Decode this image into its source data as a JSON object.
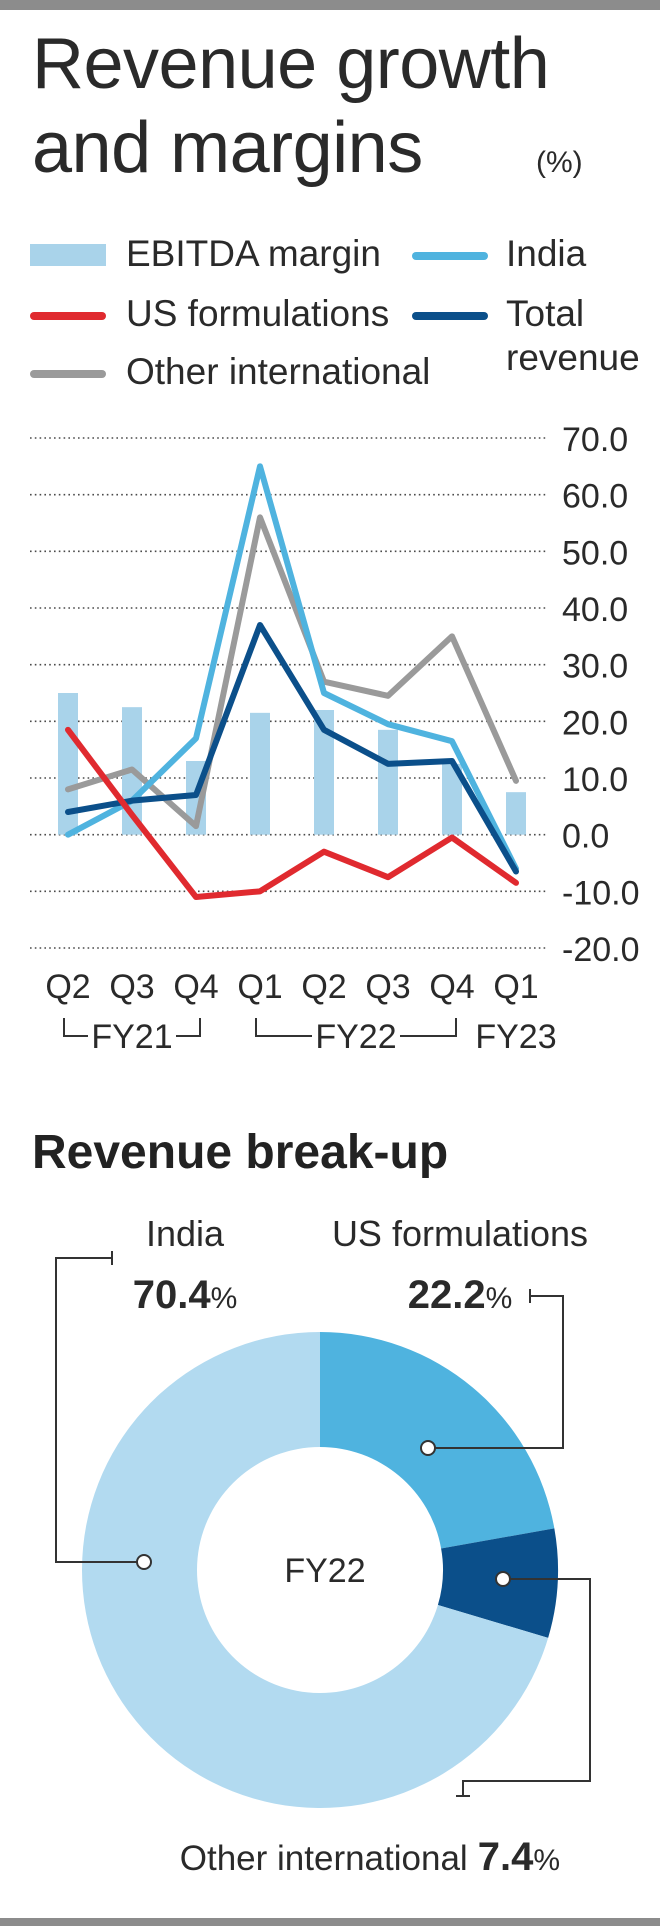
{
  "header": {
    "title_line1": "Revenue growth",
    "title_line2": "and margins",
    "unit": "(%)"
  },
  "legend": [
    {
      "label": "EBITDA margin",
      "color": "#a9d3ea",
      "kind": "bar"
    },
    {
      "label": "India",
      "color": "#4fb3df",
      "kind": "line"
    },
    {
      "label": "US formulations",
      "color": "#e02a2f",
      "kind": "line"
    },
    {
      "label": "Total",
      "label2": "revenue",
      "color": "#0b4f8a",
      "kind": "line"
    },
    {
      "label": "Other international",
      "color": "#9a9a9a",
      "kind": "line"
    }
  ],
  "chart_data": [
    {
      "type": "line",
      "categories": [
        "Q2",
        "Q3",
        "Q4",
        "Q1",
        "Q2",
        "Q3",
        "Q4",
        "Q1"
      ],
      "fiscal_groups": [
        {
          "label": "FY21",
          "from": 0,
          "to": 2
        },
        {
          "label": "FY22",
          "from": 3,
          "to": 6
        },
        {
          "label": "FY23",
          "from": 7,
          "to": 7
        }
      ],
      "y_ticks": [
        "70.0",
        "60.0",
        "50.0",
        "40.0",
        "30.0",
        "20.0",
        "10.0",
        "0.0",
        "-10.0",
        "-20.0"
      ],
      "ylim": [
        -20,
        70
      ],
      "grid": true,
      "legend_position": "top",
      "bars": {
        "name": "EBITDA margin",
        "color": "#a9d3ea",
        "values": [
          25,
          22.5,
          13,
          21.5,
          22,
          18.5,
          12.5,
          7.5
        ]
      },
      "series": [
        {
          "name": "Other international",
          "color": "#9a9a9a",
          "values": [
            8,
            11.5,
            1.5,
            56,
            27,
            24.5,
            35,
            9.5
          ]
        },
        {
          "name": "India",
          "color": "#4fb3df",
          "values": [
            0,
            6,
            17,
            65,
            25,
            19.5,
            16.5,
            -6
          ]
        },
        {
          "name": "Total revenue",
          "color": "#0b4f8a",
          "values": [
            4,
            6,
            7,
            37,
            18.5,
            12.5,
            13,
            -6.5
          ]
        },
        {
          "name": "US formulations",
          "color": "#e02a2f",
          "values": [
            18.5,
            3.5,
            -11,
            -10,
            -3,
            -7.5,
            -0.5,
            -8.5
          ]
        }
      ]
    },
    {
      "type": "pie",
      "title": "Revenue break-up",
      "center_label": "FY22",
      "slices": [
        {
          "label": "India",
          "value": 70.4,
          "display": "70.4",
          "color": "#b2daf0"
        },
        {
          "label": "US formulations",
          "value": 22.2,
          "display": "22.2",
          "color": "#4fb3df"
        },
        {
          "label": "Other international",
          "value": 7.4,
          "display": "7.4",
          "color": "#0b4f8a"
        }
      ],
      "percent_sign": "%"
    }
  ]
}
